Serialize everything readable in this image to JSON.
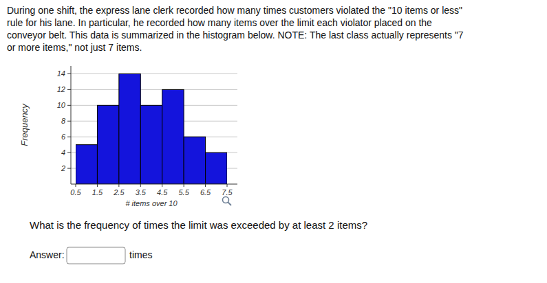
{
  "document": {
    "intro": [
      "During one shift, the express lane clerk recorded how many times customers violated the \"10 items or less\"",
      "rule for his lane. In particular, he recorded how many items over the limit each violator placed on the",
      "conveyor belt. This data is summarized in the histogram below. NOTE: The last class actually represents \"7",
      "or more items,\" not just 7 items."
    ],
    "question": "What is the frequency of times the limit was exceeded by at least 2 items?",
    "answer_label": "Answer:",
    "answer_unit": "times"
  },
  "chart_data": {
    "type": "histogram",
    "bins": [
      0.5,
      1.5,
      2.5,
      3.5,
      4.5,
      5.5,
      6.5,
      7.5
    ],
    "values": [
      5,
      10,
      14,
      10,
      12,
      6,
      4
    ],
    "x_label": "# items over 10",
    "y_label": "Frequency",
    "xlim": [
      0.5,
      7.5
    ],
    "xticks": [
      0.5,
      1.5,
      2.5,
      3.5,
      4.5,
      5.5,
      6.5,
      7.5
    ],
    "ylim": [
      0,
      15
    ],
    "yticks": [
      2,
      4,
      6,
      8,
      10,
      12,
      14
    ],
    "grid": true,
    "color": "#1414dc"
  }
}
